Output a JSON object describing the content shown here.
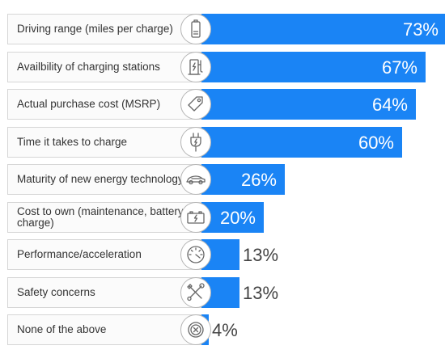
{
  "chart_data": {
    "type": "bar",
    "orientation": "horizontal",
    "categories": [
      "Driving range (miles per charge)",
      "Availbility of charging stations",
      "Actual purchase cost (MSRP)",
      "Time it takes to charge",
      "Maturity of new energy technology",
      "Cost to own (maintenance, battery charge)",
      "Performance/acceleration",
      "Safety concerns",
      "None of the above"
    ],
    "values": [
      73,
      67,
      64,
      60,
      26,
      20,
      13,
      13,
      4
    ],
    "value_labels": [
      "73%",
      "67%",
      "64%",
      "60%",
      "26%",
      "20%",
      "13%",
      "13%",
      "4%"
    ],
    "icons": [
      "battery-icon",
      "charging-station-icon",
      "price-tag-icon",
      "plug-icon",
      "car-icon",
      "battery-charge-icon",
      "speedometer-icon",
      "tools-icon",
      "none-icon"
    ],
    "xlim": [
      0,
      73
    ],
    "bar_color": "#1a84f5",
    "grid": false,
    "title": "",
    "xlabel": "",
    "ylabel": ""
  }
}
